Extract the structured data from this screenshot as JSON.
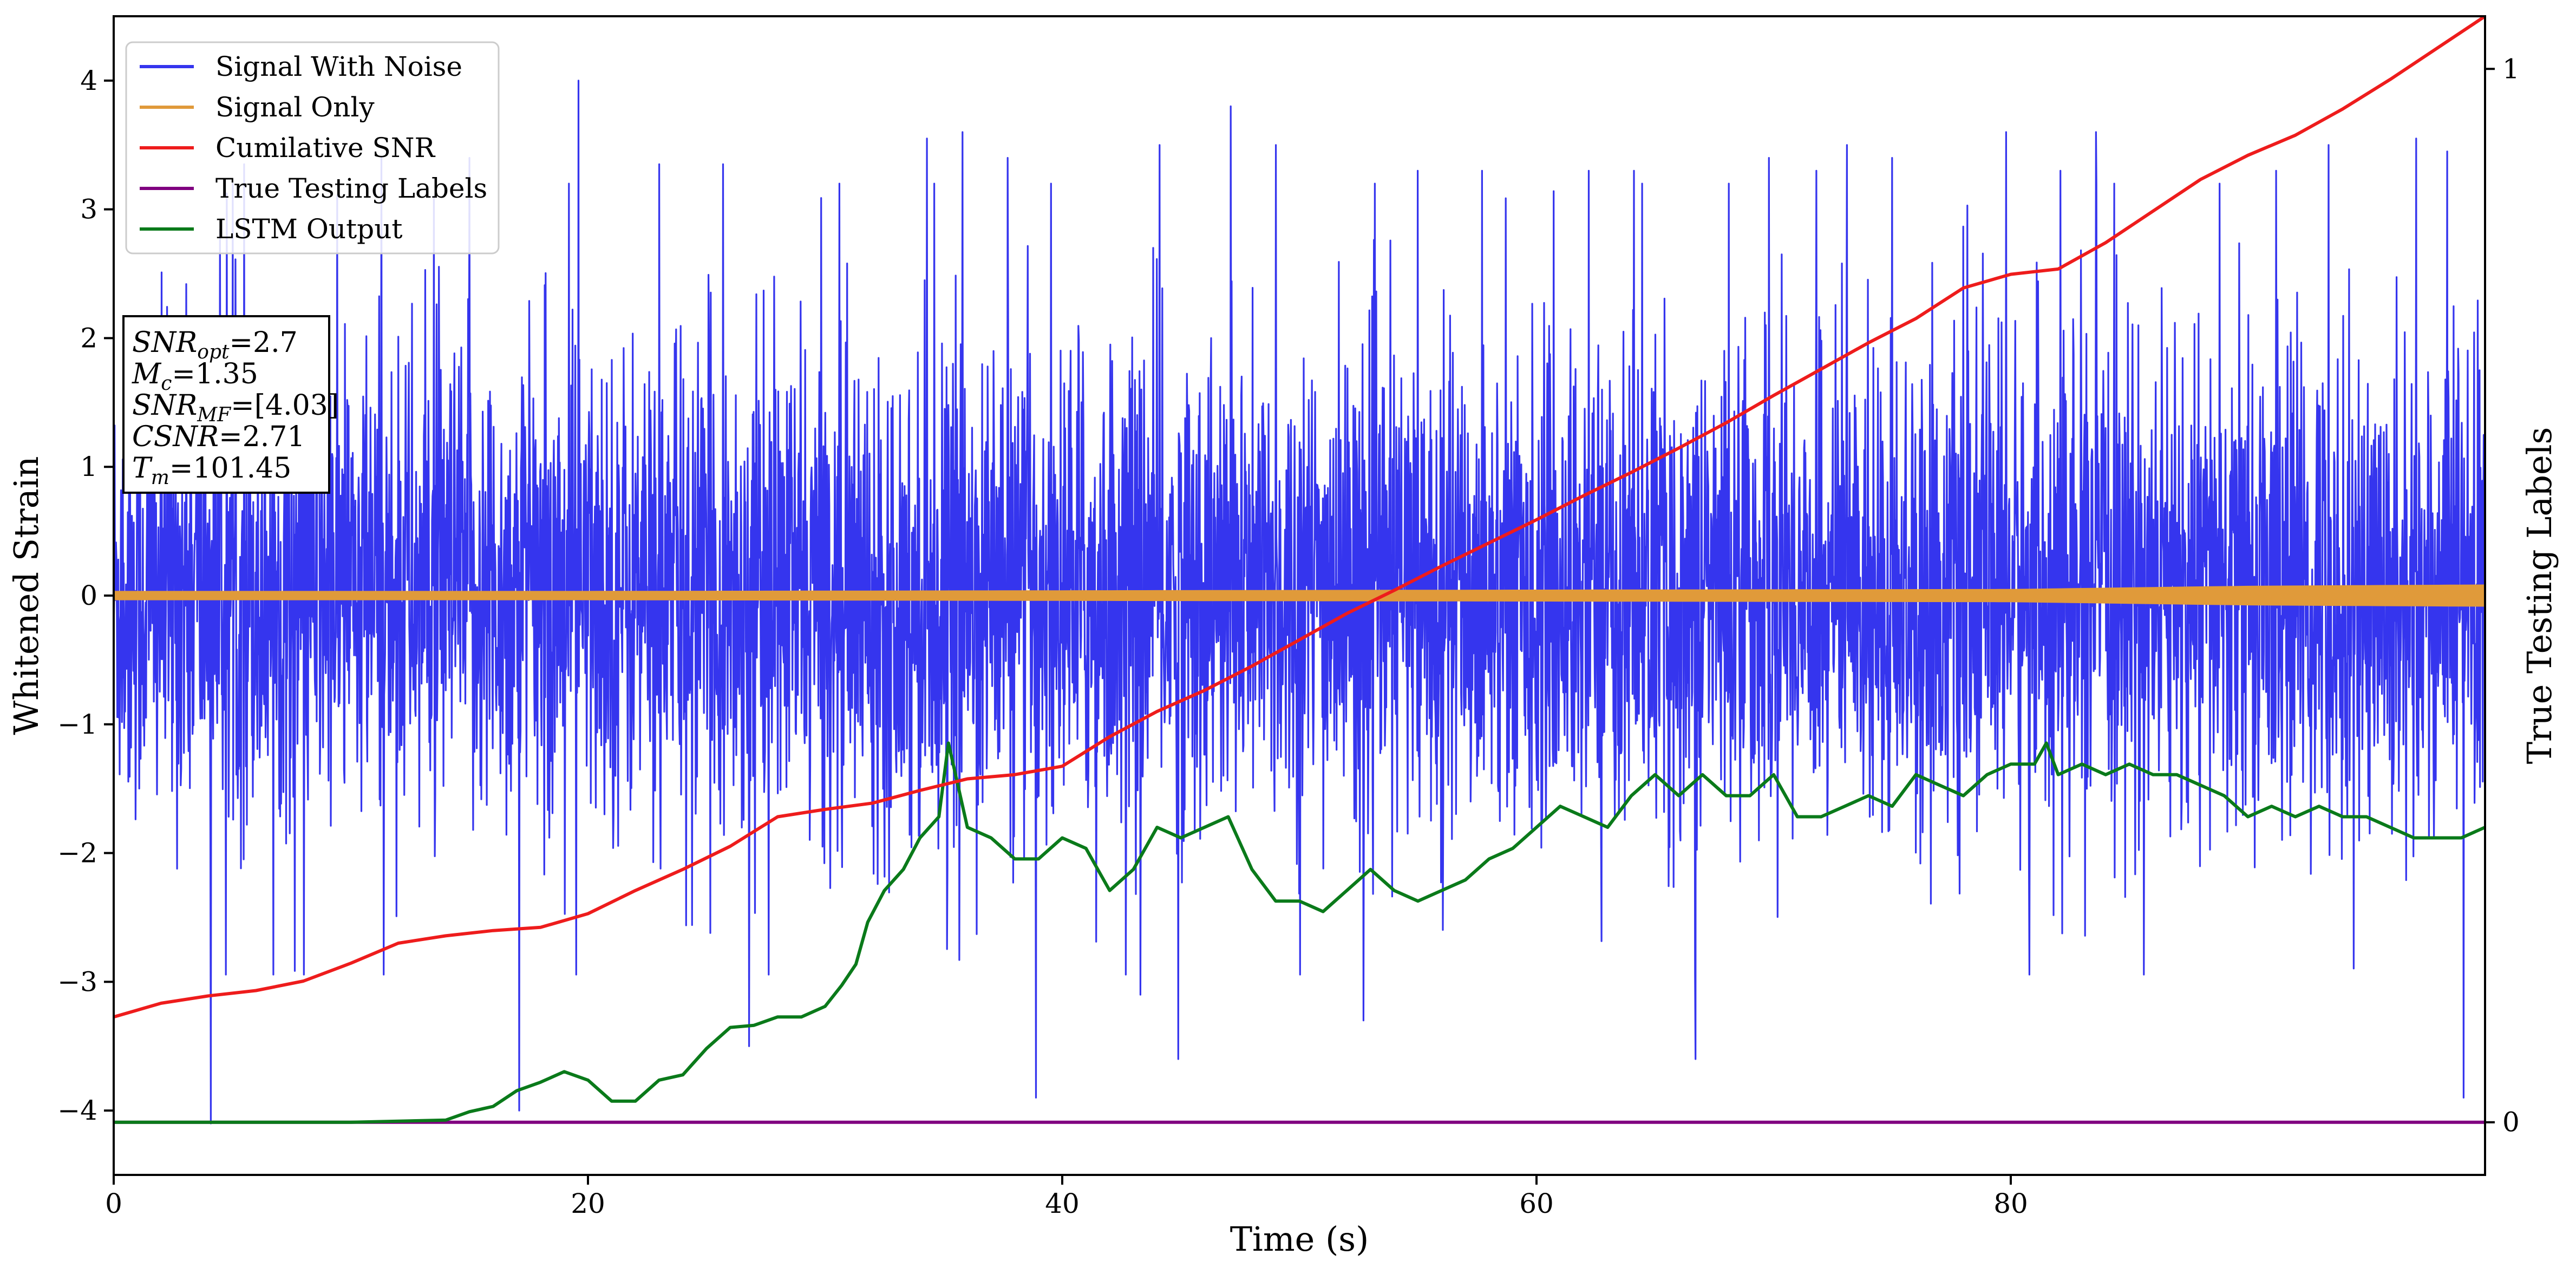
{
  "chart_data": {
    "type": "line",
    "title": "",
    "xlabel": "Time (s)",
    "ylabel": "Whitened Strain",
    "y2label": "True Testing Labels",
    "xlim": [
      0,
      100
    ],
    "ylim": [
      -4.5,
      4.5
    ],
    "y2lim": [
      -0.05,
      1.05
    ],
    "x_ticks": [
      0,
      20,
      40,
      60,
      80
    ],
    "x_tick_labels": [
      "0",
      "20",
      "40",
      "60",
      "80"
    ],
    "y_ticks": [
      -4,
      -3,
      -2,
      -1,
      0,
      1,
      2,
      3,
      4
    ],
    "y_tick_labels": [
      "−4",
      "−3",
      "−2",
      "−1",
      "0",
      "1",
      "2",
      "3",
      "4"
    ],
    "y2_ticks": [
      0,
      1
    ],
    "y2_tick_labels": [
      "0",
      "1"
    ],
    "grid": false,
    "legend_position": "top-left",
    "legend": [
      "Signal With Noise",
      "Signal Only",
      "Cumilative SNR",
      "True Testing Labels",
      "LSTM Output"
    ],
    "colors": {
      "signal_with_noise": "#3535ee",
      "signal_only": "#e09a3a",
      "cumulative_snr": "#ee1c1c",
      "true_labels": "#800080",
      "lstm_output": "#0a7a1a"
    },
    "series": [
      {
        "name": "Signal With Noise",
        "axis": "left",
        "style": "dense-noise",
        "typical_range": [
          -2.3,
          2.5
        ],
        "spikes": [
          [
            4.1,
            -4.1
          ],
          [
            5.5,
            3.35
          ],
          [
            11.3,
            3.4
          ],
          [
            13.5,
            3.1
          ],
          [
            15,
            3.4
          ],
          [
            17.1,
            -4.0
          ],
          [
            19.2,
            3.2
          ],
          [
            19.6,
            4.0
          ],
          [
            23,
            3.35
          ],
          [
            25.7,
            3.35
          ],
          [
            26.8,
            -3.5
          ],
          [
            30.6,
            3.2
          ],
          [
            34.3,
            3.55
          ],
          [
            35.8,
            3.6
          ],
          [
            37.7,
            3.4
          ],
          [
            38.9,
            -3.9
          ],
          [
            43.3,
            -3.1
          ],
          [
            44.1,
            3.5
          ],
          [
            44.9,
            -3.6
          ],
          [
            47.1,
            3.8
          ],
          [
            49,
            3.5
          ],
          [
            52.7,
            -3.3
          ],
          [
            55,
            3.3
          ],
          [
            57.7,
            3.3
          ],
          [
            62.2,
            3.3
          ],
          [
            64.1,
            3.3
          ],
          [
            66.7,
            -3.6
          ],
          [
            68.1,
            3.2
          ],
          [
            69.8,
            3.4
          ],
          [
            71.8,
            3.3
          ],
          [
            73.1,
            3.5
          ],
          [
            75,
            3.4
          ],
          [
            79.8,
            3.6
          ],
          [
            82.1,
            3.3
          ],
          [
            83.6,
            3.6
          ],
          [
            88.8,
            3.2
          ],
          [
            91.2,
            3.3
          ],
          [
            93.4,
            3.5
          ],
          [
            97.1,
            3.55
          ],
          [
            98.4,
            3.45
          ],
          [
            99.1,
            -3.9
          ]
        ]
      },
      {
        "name": "Signal Only",
        "axis": "left",
        "style": "band",
        "x": [
          0,
          20,
          40,
          60,
          80,
          90,
          100
        ],
        "amplitude": [
          0.03,
          0.03,
          0.035,
          0.04,
          0.045,
          0.07,
          0.08
        ]
      },
      {
        "name": "Cumilative SNR",
        "axis": "right",
        "x": [
          0,
          2,
          4,
          6,
          8,
          10,
          12,
          14,
          16,
          18,
          20,
          22,
          24,
          26,
          28,
          30,
          32,
          34,
          36,
          38,
          40,
          42,
          44,
          46,
          48,
          50,
          52,
          54,
          56,
          58,
          60,
          62,
          64,
          66,
          68,
          70,
          72,
          74,
          76,
          78,
          80,
          82,
          84,
          86,
          88,
          90,
          92,
          94,
          96,
          98,
          100
        ],
        "values": [
          0.1,
          0.113,
          0.12,
          0.125,
          0.134,
          0.151,
          0.17,
          0.177,
          0.182,
          0.185,
          0.198,
          0.22,
          0.24,
          0.262,
          0.29,
          0.297,
          0.303,
          0.315,
          0.326,
          0.33,
          0.338,
          0.366,
          0.39,
          0.41,
          0.433,
          0.458,
          0.483,
          0.505,
          0.528,
          0.55,
          0.572,
          0.595,
          0.617,
          0.64,
          0.664,
          0.69,
          0.715,
          0.74,
          0.763,
          0.792,
          0.805,
          0.81,
          0.835,
          0.865,
          0.895,
          0.918,
          0.937,
          0.962,
          0.99,
          1.02,
          1.05
        ]
      },
      {
        "name": "True Testing Labels",
        "axis": "right",
        "x": [
          0,
          100
        ],
        "values": [
          0,
          0
        ]
      },
      {
        "name": "LSTM Output",
        "axis": "right",
        "x": [
          0,
          10,
          14,
          15,
          16,
          17,
          18,
          19,
          20,
          21,
          22,
          23,
          24,
          25,
          26,
          27,
          28,
          29,
          30,
          30.7,
          31.3,
          31.8,
          32.5,
          33.3,
          34,
          34.8,
          35.2,
          36,
          37,
          38,
          39,
          40,
          41,
          42,
          43,
          44,
          45,
          46,
          47,
          48,
          49,
          50,
          51,
          52,
          53,
          54,
          55,
          56,
          57,
          58,
          59,
          60,
          61,
          62,
          63,
          64,
          65,
          66,
          67,
          68,
          69,
          70,
          71,
          72,
          73,
          74,
          75,
          76,
          77,
          78,
          79,
          80,
          81,
          81.5,
          82,
          83,
          84,
          85,
          86,
          87,
          88,
          89,
          90,
          91,
          92,
          93,
          94,
          95,
          96,
          97,
          98,
          99,
          100
        ],
        "values": [
          0,
          0,
          0.002,
          0.01,
          0.015,
          0.03,
          0.038,
          0.048,
          0.04,
          0.02,
          0.02,
          0.04,
          0.045,
          0.07,
          0.09,
          0.092,
          0.1,
          0.1,
          0.11,
          0.13,
          0.15,
          0.19,
          0.22,
          0.24,
          0.27,
          0.29,
          0.36,
          0.28,
          0.27,
          0.25,
          0.25,
          0.27,
          0.26,
          0.22,
          0.24,
          0.28,
          0.27,
          0.28,
          0.29,
          0.24,
          0.21,
          0.21,
          0.2,
          0.22,
          0.24,
          0.22,
          0.21,
          0.22,
          0.23,
          0.25,
          0.26,
          0.28,
          0.3,
          0.29,
          0.28,
          0.31,
          0.33,
          0.31,
          0.33,
          0.31,
          0.31,
          0.33,
          0.29,
          0.29,
          0.3,
          0.31,
          0.3,
          0.33,
          0.32,
          0.31,
          0.33,
          0.34,
          0.34,
          0.36,
          0.33,
          0.34,
          0.33,
          0.34,
          0.33,
          0.33,
          0.32,
          0.31,
          0.29,
          0.3,
          0.29,
          0.3,
          0.29,
          0.29,
          0.28,
          0.27,
          0.27,
          0.27,
          0.28
        ]
      }
    ],
    "annotation": {
      "lines": [
        {
          "name": "SNR",
          "sub": "opt",
          "value": "=2.7"
        },
        {
          "name": "M",
          "sub": "c",
          "value": "=1.35"
        },
        {
          "name": "SNR",
          "sub": "MF",
          "value": "=[4.03]"
        },
        {
          "name": "CSNR",
          "sub": "",
          "value": "=2.71"
        },
        {
          "name": "T",
          "sub": "m",
          "value": "=101.45"
        }
      ]
    }
  }
}
